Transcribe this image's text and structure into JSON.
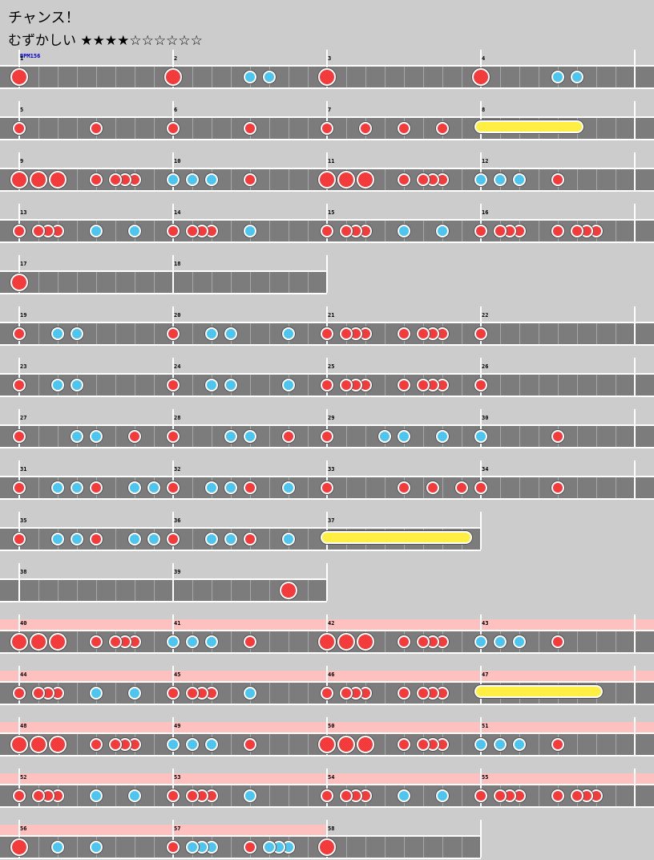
{
  "header": {
    "title": "チャンス！",
    "difficulty_label": "むずかしい",
    "difficulty_stars": "★★★★☆☆☆☆☆☆",
    "bpm": "BPM156"
  },
  "chart_data": {
    "type": "taiko-score",
    "bpm": 156,
    "difficulty_level": 4,
    "difficulty_max": 10,
    "lines": [
      {
        "bars": [
          1,
          2,
          3,
          4
        ],
        "gogo": false,
        "notes": [
          {
            "b": 0,
            "k": "D"
          },
          {
            "b": 1,
            "k": "D"
          },
          {
            "b": 2,
            "k": "D"
          },
          {
            "b": 3,
            "k": "D"
          },
          {
            "b": 1.5,
            "k": "k"
          },
          {
            "b": 1.625,
            "k": "k"
          },
          {
            "b": 3.5,
            "k": "k"
          },
          {
            "b": 3.625,
            "k": "k"
          }
        ]
      },
      {
        "bars": [
          5,
          6,
          7,
          8
        ],
        "gogo": false,
        "rolls": [
          [
            3,
            3.625
          ]
        ],
        "notes": [
          {
            "b": 0,
            "k": "d"
          },
          {
            "b": 0.5,
            "k": "d"
          },
          {
            "b": 1,
            "k": "d"
          },
          {
            "b": 1.5,
            "k": "d"
          },
          {
            "b": 2,
            "k": "d"
          },
          {
            "b": 2.25,
            "k": "d"
          },
          {
            "b": 2.5,
            "k": "d"
          },
          {
            "b": 2.75,
            "k": "d"
          }
        ]
      },
      {
        "bars": [
          9,
          10,
          11,
          12
        ],
        "gogo": false,
        "notes": [
          {
            "b": 0,
            "k": "D"
          },
          {
            "b": 0.125,
            "k": "D"
          },
          {
            "b": 0.25,
            "k": "D"
          },
          {
            "b": 0.5,
            "k": "d"
          },
          {
            "b": 0.625,
            "k": "d"
          },
          {
            "b": 0.6875,
            "k": "d"
          },
          {
            "b": 0.75,
            "k": "d"
          },
          {
            "b": 1,
            "k": "k"
          },
          {
            "b": 1.125,
            "k": "k"
          },
          {
            "b": 1.25,
            "k": "k"
          },
          {
            "b": 1.5,
            "k": "d"
          },
          {
            "b": 2,
            "k": "D"
          },
          {
            "b": 2.125,
            "k": "D"
          },
          {
            "b": 2.25,
            "k": "D"
          },
          {
            "b": 2.5,
            "k": "d"
          },
          {
            "b": 2.625,
            "k": "d"
          },
          {
            "b": 2.6875,
            "k": "d"
          },
          {
            "b": 2.75,
            "k": "d"
          },
          {
            "b": 3,
            "k": "k"
          },
          {
            "b": 3.125,
            "k": "k"
          },
          {
            "b": 3.25,
            "k": "k"
          },
          {
            "b": 3.5,
            "k": "d"
          }
        ]
      },
      {
        "bars": [
          13,
          14,
          15,
          16
        ],
        "gogo": false,
        "notes": [
          {
            "b": 0,
            "k": "d"
          },
          {
            "b": 0.125,
            "k": "d"
          },
          {
            "b": 0.1875,
            "k": "d"
          },
          {
            "b": 0.25,
            "k": "d"
          },
          {
            "b": 0.5,
            "k": "k"
          },
          {
            "b": 0.75,
            "k": "k"
          },
          {
            "b": 1,
            "k": "d"
          },
          {
            "b": 1.125,
            "k": "d"
          },
          {
            "b": 1.1875,
            "k": "d"
          },
          {
            "b": 1.25,
            "k": "d"
          },
          {
            "b": 1.5,
            "k": "k"
          },
          {
            "b": 2,
            "k": "d"
          },
          {
            "b": 2.125,
            "k": "d"
          },
          {
            "b": 2.1875,
            "k": "d"
          },
          {
            "b": 2.25,
            "k": "d"
          },
          {
            "b": 2.5,
            "k": "k"
          },
          {
            "b": 2.75,
            "k": "k"
          },
          {
            "b": 3,
            "k": "d"
          },
          {
            "b": 3.125,
            "k": "d"
          },
          {
            "b": 3.1875,
            "k": "d"
          },
          {
            "b": 3.25,
            "k": "d"
          },
          {
            "b": 3.5,
            "k": "d"
          },
          {
            "b": 3.625,
            "k": "d"
          },
          {
            "b": 3.6875,
            "k": "d"
          },
          {
            "b": 3.75,
            "k": "d"
          }
        ]
      },
      {
        "bars": [
          17,
          18
        ],
        "gogo": false,
        "notes": [
          {
            "b": 0,
            "k": "D"
          }
        ]
      },
      {
        "bars": [
          19,
          20,
          21,
          22
        ],
        "gogo": false,
        "notes": [
          {
            "b": 0,
            "k": "d"
          },
          {
            "b": 0.25,
            "k": "k"
          },
          {
            "b": 0.375,
            "k": "k"
          },
          {
            "b": 1,
            "k": "d"
          },
          {
            "b": 1.25,
            "k": "k"
          },
          {
            "b": 1.375,
            "k": "k"
          },
          {
            "b": 1.75,
            "k": "k"
          },
          {
            "b": 2,
            "k": "d"
          },
          {
            "b": 2.125,
            "k": "d"
          },
          {
            "b": 2.1875,
            "k": "d"
          },
          {
            "b": 2.25,
            "k": "d"
          },
          {
            "b": 2.5,
            "k": "d"
          },
          {
            "b": 2.625,
            "k": "d"
          },
          {
            "b": 2.6875,
            "k": "d"
          },
          {
            "b": 2.75,
            "k": "d"
          },
          {
            "b": 3,
            "k": "d"
          }
        ]
      },
      {
        "bars": [
          23,
          24,
          25,
          26
        ],
        "gogo": false,
        "notes": [
          {
            "b": 0,
            "k": "d"
          },
          {
            "b": 0.25,
            "k": "k"
          },
          {
            "b": 0.375,
            "k": "k"
          },
          {
            "b": 1,
            "k": "d"
          },
          {
            "b": 1.25,
            "k": "k"
          },
          {
            "b": 1.375,
            "k": "k"
          },
          {
            "b": 1.75,
            "k": "k"
          },
          {
            "b": 2,
            "k": "d"
          },
          {
            "b": 2.125,
            "k": "d"
          },
          {
            "b": 2.1875,
            "k": "d"
          },
          {
            "b": 2.25,
            "k": "d"
          },
          {
            "b": 2.5,
            "k": "d"
          },
          {
            "b": 2.625,
            "k": "d"
          },
          {
            "b": 2.6875,
            "k": "d"
          },
          {
            "b": 2.75,
            "k": "d"
          },
          {
            "b": 3,
            "k": "d"
          }
        ]
      },
      {
        "bars": [
          27,
          28,
          29,
          30
        ],
        "gogo": false,
        "notes": [
          {
            "b": 0,
            "k": "d"
          },
          {
            "b": 0.375,
            "k": "k"
          },
          {
            "b": 0.5,
            "k": "k"
          },
          {
            "b": 0.75,
            "k": "d"
          },
          {
            "b": 1,
            "k": "d"
          },
          {
            "b": 1.375,
            "k": "k"
          },
          {
            "b": 1.5,
            "k": "k"
          },
          {
            "b": 1.75,
            "k": "d"
          },
          {
            "b": 2,
            "k": "d"
          },
          {
            "b": 2.375,
            "k": "k"
          },
          {
            "b": 2.5,
            "k": "k"
          },
          {
            "b": 2.75,
            "k": "k"
          },
          {
            "b": 3,
            "k": "k"
          },
          {
            "b": 3.5,
            "k": "d"
          }
        ]
      },
      {
        "bars": [
          31,
          32,
          33,
          34
        ],
        "gogo": false,
        "notes": [
          {
            "b": 0,
            "k": "d"
          },
          {
            "b": 0.25,
            "k": "k"
          },
          {
            "b": 0.375,
            "k": "k"
          },
          {
            "b": 0.5,
            "k": "d"
          },
          {
            "b": 0.75,
            "k": "k"
          },
          {
            "b": 0.875,
            "k": "k"
          },
          {
            "b": 1,
            "k": "d"
          },
          {
            "b": 1.25,
            "k": "k"
          },
          {
            "b": 1.375,
            "k": "k"
          },
          {
            "b": 1.5,
            "k": "d"
          },
          {
            "b": 1.75,
            "k": "k"
          },
          {
            "b": 2,
            "k": "d"
          },
          {
            "b": 2.5,
            "k": "d"
          },
          {
            "b": 2.6875,
            "k": "d"
          },
          {
            "b": 2.875,
            "k": "d"
          },
          {
            "b": 3,
            "k": "d"
          },
          {
            "b": 3.5,
            "k": "d"
          }
        ]
      },
      {
        "bars": [
          35,
          36,
          37
        ],
        "gogo": false,
        "rolls": [
          [
            2,
            2.9
          ]
        ],
        "notes": [
          {
            "b": 0,
            "k": "d"
          },
          {
            "b": 0.25,
            "k": "k"
          },
          {
            "b": 0.375,
            "k": "k"
          },
          {
            "b": 0.5,
            "k": "d"
          },
          {
            "b": 0.75,
            "k": "k"
          },
          {
            "b": 0.875,
            "k": "k"
          },
          {
            "b": 1,
            "k": "d"
          },
          {
            "b": 1.25,
            "k": "k"
          },
          {
            "b": 1.375,
            "k": "k"
          },
          {
            "b": 1.5,
            "k": "d"
          },
          {
            "b": 1.75,
            "k": "k"
          }
        ]
      },
      {
        "bars": [
          38,
          39
        ],
        "gogo": false,
        "notes": [
          {
            "b": 1.75,
            "k": "D"
          }
        ]
      },
      {
        "bars": [
          40,
          41,
          42,
          43
        ],
        "gogo": true,
        "notes": [
          {
            "b": 0,
            "k": "D"
          },
          {
            "b": 0.125,
            "k": "D"
          },
          {
            "b": 0.25,
            "k": "D"
          },
          {
            "b": 0.5,
            "k": "d"
          },
          {
            "b": 0.625,
            "k": "d"
          },
          {
            "b": 0.6875,
            "k": "d"
          },
          {
            "b": 0.75,
            "k": "d"
          },
          {
            "b": 1,
            "k": "k"
          },
          {
            "b": 1.125,
            "k": "k"
          },
          {
            "b": 1.25,
            "k": "k"
          },
          {
            "b": 1.5,
            "k": "d"
          },
          {
            "b": 2,
            "k": "D"
          },
          {
            "b": 2.125,
            "k": "D"
          },
          {
            "b": 2.25,
            "k": "D"
          },
          {
            "b": 2.5,
            "k": "d"
          },
          {
            "b": 2.625,
            "k": "d"
          },
          {
            "b": 2.6875,
            "k": "d"
          },
          {
            "b": 2.75,
            "k": "d"
          },
          {
            "b": 3,
            "k": "k"
          },
          {
            "b": 3.125,
            "k": "k"
          },
          {
            "b": 3.25,
            "k": "k"
          },
          {
            "b": 3.5,
            "k": "d"
          }
        ]
      },
      {
        "bars": [
          44,
          45,
          46,
          47
        ],
        "gogo": true,
        "rolls": [
          [
            3,
            3.75
          ]
        ],
        "notes": [
          {
            "b": 0,
            "k": "d"
          },
          {
            "b": 0.125,
            "k": "d"
          },
          {
            "b": 0.1875,
            "k": "d"
          },
          {
            "b": 0.25,
            "k": "d"
          },
          {
            "b": 0.5,
            "k": "k"
          },
          {
            "b": 0.75,
            "k": "k"
          },
          {
            "b": 1,
            "k": "d"
          },
          {
            "b": 1.125,
            "k": "d"
          },
          {
            "b": 1.1875,
            "k": "d"
          },
          {
            "b": 1.25,
            "k": "d"
          },
          {
            "b": 1.5,
            "k": "k"
          },
          {
            "b": 2,
            "k": "d"
          },
          {
            "b": 2.125,
            "k": "d"
          },
          {
            "b": 2.1875,
            "k": "d"
          },
          {
            "b": 2.25,
            "k": "d"
          },
          {
            "b": 2.5,
            "k": "d"
          },
          {
            "b": 2.625,
            "k": "d"
          },
          {
            "b": 2.6875,
            "k": "d"
          },
          {
            "b": 2.75,
            "k": "d"
          }
        ]
      },
      {
        "bars": [
          48,
          49,
          50,
          51
        ],
        "gogo": true,
        "notes": [
          {
            "b": 0,
            "k": "D"
          },
          {
            "b": 0.125,
            "k": "D"
          },
          {
            "b": 0.25,
            "k": "D"
          },
          {
            "b": 0.5,
            "k": "d"
          },
          {
            "b": 0.625,
            "k": "d"
          },
          {
            "b": 0.6875,
            "k": "d"
          },
          {
            "b": 0.75,
            "k": "d"
          },
          {
            "b": 1,
            "k": "k"
          },
          {
            "b": 1.125,
            "k": "k"
          },
          {
            "b": 1.25,
            "k": "k"
          },
          {
            "b": 1.5,
            "k": "d"
          },
          {
            "b": 2,
            "k": "D"
          },
          {
            "b": 2.125,
            "k": "D"
          },
          {
            "b": 2.25,
            "k": "D"
          },
          {
            "b": 2.5,
            "k": "d"
          },
          {
            "b": 2.625,
            "k": "d"
          },
          {
            "b": 2.6875,
            "k": "d"
          },
          {
            "b": 2.75,
            "k": "d"
          },
          {
            "b": 3,
            "k": "k"
          },
          {
            "b": 3.125,
            "k": "k"
          },
          {
            "b": 3.25,
            "k": "k"
          },
          {
            "b": 3.5,
            "k": "d"
          }
        ]
      },
      {
        "bars": [
          52,
          53,
          54,
          55
        ],
        "gogo": true,
        "notes": [
          {
            "b": 0,
            "k": "d"
          },
          {
            "b": 0.125,
            "k": "d"
          },
          {
            "b": 0.1875,
            "k": "d"
          },
          {
            "b": 0.25,
            "k": "d"
          },
          {
            "b": 0.5,
            "k": "k"
          },
          {
            "b": 0.75,
            "k": "k"
          },
          {
            "b": 1,
            "k": "d"
          },
          {
            "b": 1.125,
            "k": "d"
          },
          {
            "b": 1.1875,
            "k": "d"
          },
          {
            "b": 1.25,
            "k": "d"
          },
          {
            "b": 1.5,
            "k": "k"
          },
          {
            "b": 2,
            "k": "d"
          },
          {
            "b": 2.125,
            "k": "d"
          },
          {
            "b": 2.1875,
            "k": "d"
          },
          {
            "b": 2.25,
            "k": "d"
          },
          {
            "b": 2.5,
            "k": "k"
          },
          {
            "b": 2.75,
            "k": "k"
          },
          {
            "b": 3,
            "k": "d"
          },
          {
            "b": 3.125,
            "k": "d"
          },
          {
            "b": 3.1875,
            "k": "d"
          },
          {
            "b": 3.25,
            "k": "d"
          },
          {
            "b": 3.5,
            "k": "d"
          },
          {
            "b": 3.625,
            "k": "d"
          },
          {
            "b": 3.6875,
            "k": "d"
          },
          {
            "b": 3.75,
            "k": "d"
          }
        ]
      },
      {
        "bars": [
          56,
          57,
          58
        ],
        "gogo": true,
        "gogo_end": 2,
        "notes": [
          {
            "b": 0,
            "k": "D"
          },
          {
            "b": 0.25,
            "k": "k"
          },
          {
            "b": 0.5,
            "k": "k"
          },
          {
            "b": 1,
            "k": "d"
          },
          {
            "b": 1.125,
            "k": "k"
          },
          {
            "b": 1.1875,
            "k": "k"
          },
          {
            "b": 1.25,
            "k": "k"
          },
          {
            "b": 1.5,
            "k": "d"
          },
          {
            "b": 1.625,
            "k": "k"
          },
          {
            "b": 1.6875,
            "k": "k"
          },
          {
            "b": 1.75,
            "k": "k"
          },
          {
            "b": 2,
            "k": "D"
          }
        ]
      }
    ]
  },
  "colors": {
    "background": "#cccccc",
    "lane": "#7c7c7c",
    "don": "#f33b3b",
    "ka": "#4ec4ee",
    "roll": "#ffee44",
    "gogo": "#ffc0c0"
  }
}
